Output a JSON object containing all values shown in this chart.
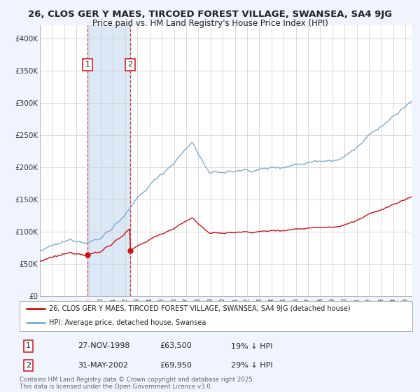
{
  "title_line1": "26, CLOS GER Y MAES, TIRCOED FOREST VILLAGE, SWANSEA, SA4 9JG",
  "title_line2": "Price paid vs. HM Land Registry's House Price Index (HPI)",
  "bg_color": "#f0f4ff",
  "plot_bg_color": "#ffffff",
  "red_line_label": "26, CLOS GER Y MAES, TIRCOED FOREST VILLAGE, SWANSEA, SA4 9JG (detached house)",
  "blue_line_label": "HPI: Average price, detached house, Swansea",
  "sale1_year": 1998.91,
  "sale1_price": 63500,
  "sale1_text": "27-NOV-1998",
  "sale1_pct": "19% ↓ HPI",
  "sale2_year": 2002.41,
  "sale2_price": 69950,
  "sale2_text": "31-MAY-2002",
  "sale2_pct": "29% ↓ HPI",
  "xmin": 1995.0,
  "xmax": 2025.5,
  "ymin": 0,
  "ymax": 420000,
  "yticks": [
    0,
    50000,
    100000,
    150000,
    200000,
    250000,
    300000,
    350000,
    400000
  ],
  "ytick_labels": [
    "£0",
    "£50K",
    "£100K",
    "£150K",
    "£200K",
    "£250K",
    "£300K",
    "£350K",
    "£400K"
  ],
  "footer_text": "Contains HM Land Registry data © Crown copyright and database right 2025.\nThis data is licensed under the Open Government Licence v3.0.",
  "shade_x1": 1998.91,
  "shade_x2": 2002.41,
  "red_color": "#cc1111",
  "blue_color": "#7aaad0",
  "shade_color": "#dce8f5"
}
